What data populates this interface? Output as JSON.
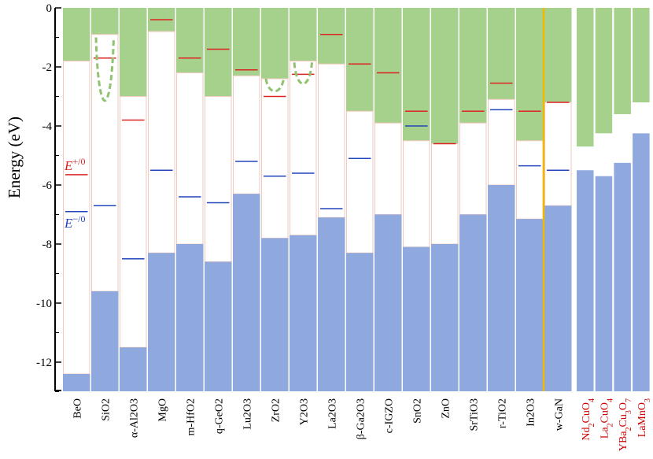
{
  "chart_data": {
    "type": "bar",
    "ylabel": "Energy (eV)",
    "ylim": [
      -13,
      0
    ],
    "yticks": [
      0,
      -2,
      -4,
      -6,
      -8,
      -10,
      -12
    ],
    "ytick_labels": [
      "0",
      "-2",
      "-4",
      "-6",
      "-8",
      "-10",
      "-12"
    ],
    "legend": [
      {
        "base": "E",
        "sup": "+/0",
        "color": "#dd2222"
      },
      {
        "base": "E",
        "sup": "−/0",
        "color": "#2244bb"
      }
    ],
    "colors": {
      "conduction": "#a5d18d",
      "valence": "#8fa8de",
      "gap": "#ffffff",
      "outline": "#f2c9bc",
      "plus_level": "#dd2222",
      "minus_level": "#2244bb",
      "separator": "#f5b800",
      "dopant_curve": "#8fc36e",
      "metal_label": "#cc0000"
    },
    "materials": [
      {
        "name": "BeO",
        "cbm": -1.8,
        "vbm": -12.4,
        "e_plus": -5.65,
        "e_minus": -6.9
      },
      {
        "name": "SiO2",
        "cbm": -0.9,
        "vbm": -9.6,
        "e_plus": -1.7,
        "e_minus": -6.7
      },
      {
        "name": "α-Al2O3",
        "cbm": -3.0,
        "vbm": -11.5,
        "e_plus": -3.8,
        "e_minus": -8.5
      },
      {
        "name": "MgO",
        "cbm": -0.8,
        "vbm": -8.3,
        "e_plus": -0.4,
        "e_minus": -5.5
      },
      {
        "name": "m-HfO2",
        "cbm": -2.2,
        "vbm": -8.0,
        "e_plus": -1.7,
        "e_minus": -6.4
      },
      {
        "name": "q-GeO2",
        "cbm": -3.0,
        "vbm": -8.6,
        "e_plus": -1.4,
        "e_minus": -6.6
      },
      {
        "name": "Lu2O3",
        "cbm": -2.3,
        "vbm": -6.3,
        "e_plus": -2.1,
        "e_minus": -5.2
      },
      {
        "name": "ZrO2",
        "cbm": -2.4,
        "vbm": -7.8,
        "e_plus": -3.0,
        "e_minus": -5.7
      },
      {
        "name": "Y2O3",
        "cbm": -1.8,
        "vbm": -7.7,
        "e_plus": -2.25,
        "e_minus": -5.6
      },
      {
        "name": "La2O3",
        "cbm": -1.9,
        "vbm": -7.1,
        "e_plus": -0.9,
        "e_minus": -6.8
      },
      {
        "name": "β-Ga2O3",
        "cbm": -3.5,
        "vbm": -8.3,
        "e_plus": -1.9,
        "e_minus": -5.1
      },
      {
        "name": "c-IGZO",
        "cbm": -3.9,
        "vbm": -7.0,
        "e_plus": -2.2,
        "e_minus": null
      },
      {
        "name": "SnO2",
        "cbm": -4.5,
        "vbm": -8.1,
        "e_plus": -3.5,
        "e_minus": -4.0
      },
      {
        "name": "ZnO",
        "cbm": -4.6,
        "vbm": -8.0,
        "e_plus": -4.6,
        "e_minus": null
      },
      {
        "name": "SrTiO3",
        "cbm": -3.9,
        "vbm": -7.0,
        "e_plus": -3.5,
        "e_minus": null
      },
      {
        "name": "r-TiO2",
        "cbm": -3.1,
        "vbm": -6.0,
        "e_plus": -2.55,
        "e_minus": -3.45
      },
      {
        "name": "In2O3",
        "cbm": -4.5,
        "vbm": -7.15,
        "e_plus": -3.5,
        "e_minus": -5.35
      },
      {
        "name": "w-GaN",
        "cbm": -3.2,
        "vbm": -6.7,
        "e_plus": -3.2,
        "e_minus": -5.5
      }
    ],
    "metals": [
      {
        "name": "Nd2CuO4",
        "base": [
          "Nd",
          "CuO"
        ],
        "subs": [
          "2",
          "4"
        ],
        "cbm": -4.7,
        "vbm": -5.5
      },
      {
        "name": "La2CuO4",
        "base": [
          "La",
          "CuO"
        ],
        "subs": [
          "2",
          "4"
        ],
        "cbm": -4.25,
        "vbm": -5.7
      },
      {
        "name": "YBa2Cu3O7",
        "base": [
          "YBa",
          "Cu",
          "O"
        ],
        "subs": [
          "2",
          "3",
          "7"
        ],
        "cbm": -3.6,
        "vbm": -5.25
      },
      {
        "name": "LaMnO3",
        "base": [
          "LaMnO"
        ],
        "subs": [
          "3"
        ],
        "cbm": -3.2,
        "vbm": -4.25
      }
    ],
    "dopant_wells": [
      {
        "material": "SiO2",
        "top": -1.0,
        "bottom": -3.75
      },
      {
        "material": "ZrO2",
        "top": -2.4,
        "bottom": -2.85
      },
      {
        "material": "Y2O3",
        "top": -1.85,
        "bottom": -2.7
      }
    ]
  }
}
